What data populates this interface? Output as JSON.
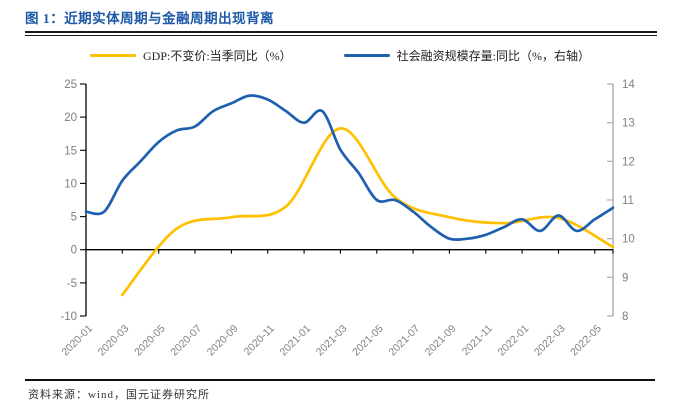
{
  "header": {
    "title": "图 1：近期实体周期与金融周期出现背离"
  },
  "legend": {
    "items": [
      {
        "label": "GDP:不变价:当季同比（%）",
        "color": "#FFC000"
      },
      {
        "label": "社会融资规模存量:同比（%，右轴）",
        "color": "#1F5FAF"
      }
    ]
  },
  "footer": {
    "source": "资料来源：wind，国元证券研究所"
  },
  "colors": {
    "title_blue": "#1E5AA8",
    "gdp_yellow": "#FFC000",
    "sf_blue": "#1F5FAF",
    "axis_text": "#808080",
    "axis_line": "#000000",
    "right_axis_line": "#A6A6A6"
  },
  "chart_data": {
    "type": "line",
    "title": "近期实体周期与金融周期出现背离",
    "grid": false,
    "legend_position": "top",
    "x_range": {
      "start": "2020-01",
      "end": "2022-06"
    },
    "x_tick_labels": [
      "2020-01",
      "2020-03",
      "2020-05",
      "2020-07",
      "2020-09",
      "2020-11",
      "2021-01",
      "2021-03",
      "2021-05",
      "2021-07",
      "2021-09",
      "2021-11",
      "2022-01",
      "2022-03",
      "2022-05"
    ],
    "left_axis": {
      "label": "GDP:不变价:当季同比（%）",
      "min": -10,
      "max": 25,
      "step": 5,
      "ticks": [
        -10,
        -5,
        0,
        5,
        10,
        15,
        20,
        25
      ]
    },
    "right_axis": {
      "label": "社会融资规模存量:同比（%，右轴）",
      "min": 8,
      "max": 14,
      "step": 1,
      "ticks": [
        8,
        9,
        10,
        11,
        12,
        13,
        14
      ]
    },
    "series": [
      {
        "name": "GDP:不变价:当季同比（%）",
        "axis": "left",
        "color": "#FFC000",
        "x": [
          "2020-03",
          "2020-06",
          "2020-09",
          "2020-12",
          "2021-03",
          "2021-06",
          "2021-09",
          "2021-12",
          "2022-03",
          "2022-06"
        ],
        "values": [
          -6.8,
          3.2,
          4.9,
          6.5,
          18.3,
          7.9,
          4.9,
          4.0,
          4.8,
          0.4
        ]
      },
      {
        "name": "社会融资规模存量:同比（%，右轴）",
        "axis": "right",
        "color": "#1F5FAF",
        "x": [
          "2020-01",
          "2020-02",
          "2020-03",
          "2020-04",
          "2020-05",
          "2020-06",
          "2020-07",
          "2020-08",
          "2020-09",
          "2020-10",
          "2020-11",
          "2020-12",
          "2021-01",
          "2021-02",
          "2021-03",
          "2021-04",
          "2021-05",
          "2021-06",
          "2021-07",
          "2021-08",
          "2021-09",
          "2021-10",
          "2021-11",
          "2021-12",
          "2022-01",
          "2022-02",
          "2022-03",
          "2022-04",
          "2022-05",
          "2022-06"
        ],
        "values": [
          10.7,
          10.7,
          11.5,
          12.0,
          12.5,
          12.8,
          12.9,
          13.3,
          13.5,
          13.7,
          13.6,
          13.3,
          13.0,
          13.3,
          12.3,
          11.7,
          11.0,
          11.0,
          10.7,
          10.3,
          10.0,
          10.0,
          10.1,
          10.3,
          10.5,
          10.2,
          10.6,
          10.2,
          10.5,
          10.8
        ]
      }
    ]
  }
}
